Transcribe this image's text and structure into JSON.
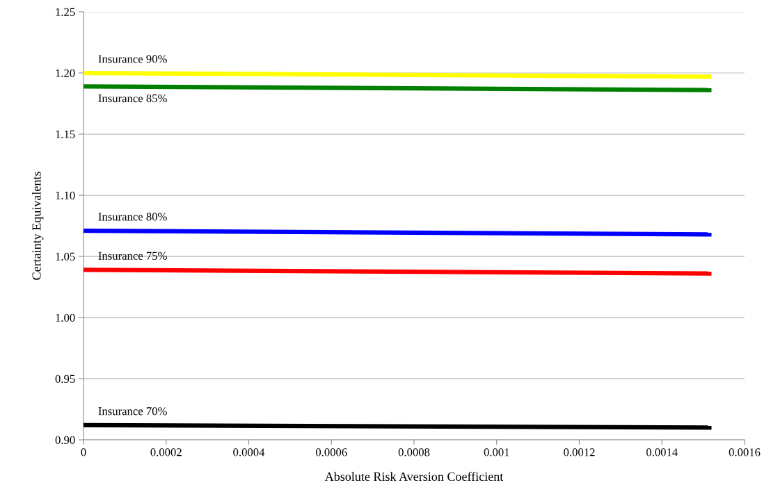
{
  "chart_data": {
    "type": "line",
    "xlabel": "Absolute Risk Aversion Coefficient",
    "ylabel": "Certainty Equivalents",
    "x": [
      0,
      0.00152
    ],
    "series": [
      {
        "name": "Insurance 90%",
        "color": "#ffff00",
        "values": [
          1.2,
          1.197
        ]
      },
      {
        "name": "Insurance 85%",
        "color": "#008000",
        "values": [
          1.189,
          1.186
        ]
      },
      {
        "name": "Insurance 80%",
        "color": "#0000ff",
        "values": [
          1.071,
          1.068
        ]
      },
      {
        "name": "Insurance 75%",
        "color": "#ff0000",
        "values": [
          1.039,
          1.036
        ]
      },
      {
        "name": "Insurance 70%",
        "color": "#000000",
        "values": [
          0.912,
          0.91
        ]
      }
    ],
    "xlim": [
      0,
      0.0016
    ],
    "xticks": [
      {
        "value": 0,
        "label": "0"
      },
      0.0002,
      0.0004,
      0.0006,
      0.0008,
      0.001,
      0.0012,
      0.0014,
      0.0016
    ],
    "ylim": [
      0.9,
      1.25
    ],
    "yticks": [
      {
        "value": 0.9,
        "label": "0.90"
      },
      {
        "value": 0.95,
        "label": "0.95"
      },
      {
        "value": 1.0,
        "label": "1.00"
      },
      {
        "value": 1.05,
        "label": "1.05"
      },
      {
        "value": 1.1,
        "label": "1.10"
      },
      {
        "value": 1.15,
        "label": "1.15"
      },
      {
        "value": 1.2,
        "label": "1.20"
      },
      {
        "value": 1.25,
        "label": "1.25"
      }
    ],
    "grid": "y",
    "legend": false,
    "marker": "none",
    "line_style": "solid"
  }
}
